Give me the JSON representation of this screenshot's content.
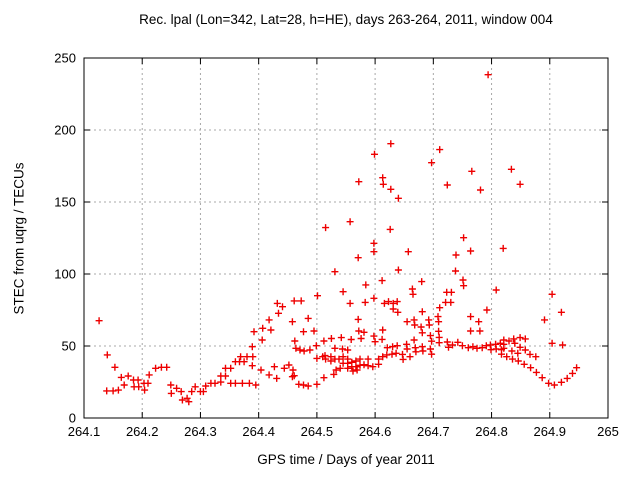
{
  "window": {
    "background": "#ffffff"
  },
  "colors": {
    "marker": "#ee0000",
    "grid": "#a8a8a8",
    "border": "#000000",
    "text": "#000000"
  },
  "chart_data": {
    "type": "scatter",
    "title": "Rec. lpal (Lon=342, Lat=28, h=HE), days 263-264, 2011, window 004",
    "xlabel": "GPS time / Days of year 2011",
    "ylabel": "STEC from uqrg / TECUs",
    "xlim": [
      264.1,
      265.0
    ],
    "ylim": [
      0,
      250
    ],
    "xticks": [
      {
        "v": 264.1,
        "label": "264.1"
      },
      {
        "v": 264.2,
        "label": "264.2"
      },
      {
        "v": 264.3,
        "label": "264.3"
      },
      {
        "v": 264.4,
        "label": "264.4"
      },
      {
        "v": 264.5,
        "label": "264.5"
      },
      {
        "v": 264.6,
        "label": "264.6"
      },
      {
        "v": 264.7,
        "label": "264.7"
      },
      {
        "v": 264.8,
        "label": "264.8"
      },
      {
        "v": 264.9,
        "label": "264.9"
      },
      {
        "v": 265.0,
        "label": "265"
      }
    ],
    "yticks": [
      {
        "v": 0,
        "label": "0"
      },
      {
        "v": 50,
        "label": "50"
      },
      {
        "v": 100,
        "label": "100"
      },
      {
        "v": 150,
        "label": "150"
      },
      {
        "v": 200,
        "label": "200"
      },
      {
        "v": 250,
        "label": "250"
      }
    ],
    "grid": true,
    "legend": "none",
    "marker": "plus",
    "series": [
      {
        "name": "STEC",
        "points": [
          [
            264.126,
            67.6
          ],
          [
            264.14,
            43.8
          ],
          [
            264.153,
            35.2
          ],
          [
            264.164,
            28.2
          ],
          [
            264.139,
            18.8
          ],
          [
            264.15,
            18.8
          ],
          [
            264.159,
            19.4
          ],
          [
            264.169,
            22.9
          ],
          [
            264.176,
            29.2
          ],
          [
            264.185,
            26.4
          ],
          [
            264.186,
            21.7
          ],
          [
            264.193,
            26.4
          ],
          [
            264.194,
            21.7
          ],
          [
            264.203,
            24.1
          ],
          [
            264.204,
            19.4
          ],
          [
            264.212,
            29.9
          ],
          [
            264.21,
            24.1
          ],
          [
            264.223,
            34.5
          ],
          [
            264.233,
            35.2
          ],
          [
            264.242,
            35.2
          ],
          [
            264.249,
            22.9
          ],
          [
            264.25,
            17.1
          ],
          [
            264.259,
            20.6
          ],
          [
            264.267,
            18.3
          ],
          [
            264.269,
            12.5
          ],
          [
            264.277,
            13.7
          ],
          [
            264.28,
            11.3
          ],
          [
            264.285,
            18.3
          ],
          [
            264.291,
            21.7
          ],
          [
            264.3,
            18.3
          ],
          [
            264.305,
            18.3
          ],
          [
            264.309,
            22.2
          ],
          [
            264.318,
            24.1
          ],
          [
            264.325,
            24.1
          ],
          [
            264.335,
            29.2
          ],
          [
            264.335,
            24.9
          ],
          [
            264.343,
            34.5
          ],
          [
            264.343,
            29.2
          ],
          [
            264.352,
            34.5
          ],
          [
            264.352,
            24.1
          ],
          [
            264.36,
            39.1
          ],
          [
            264.36,
            24.1
          ],
          [
            264.369,
            42.6
          ],
          [
            264.367,
            39.1
          ],
          [
            264.375,
            39.1
          ],
          [
            264.372,
            24.1
          ],
          [
            264.38,
            42.6
          ],
          [
            264.384,
            24.1
          ],
          [
            264.389,
            49.5
          ],
          [
            264.39,
            42.6
          ],
          [
            264.389,
            36.3
          ],
          [
            264.392,
            59.9
          ],
          [
            264.395,
            22.9
          ],
          [
            264.404,
            33.3
          ],
          [
            264.406,
            54.2
          ],
          [
            264.407,
            62.3
          ],
          [
            264.418,
            68.1
          ],
          [
            264.421,
            61.1
          ],
          [
            264.418,
            29.9
          ],
          [
            264.427,
            35.6
          ],
          [
            264.431,
            27.5
          ],
          [
            264.432,
            79.6
          ],
          [
            264.434,
            72.7
          ],
          [
            264.441,
            77.3
          ],
          [
            264.444,
            34.5
          ],
          [
            264.452,
            36.8
          ],
          [
            264.458,
            66.9
          ],
          [
            264.459,
            33.3
          ],
          [
            264.458,
            28.7
          ],
          [
            264.627,
            190.5
          ],
          [
            264.599,
            183.1
          ],
          [
            264.613,
            166.9
          ],
          [
            264.614,
            162.3
          ],
          [
            264.572,
            164.1
          ],
          [
            264.627,
            158.8
          ],
          [
            264.64,
            152.6
          ],
          [
            264.557,
            136.3
          ],
          [
            264.515,
            132.2
          ],
          [
            264.626,
            131.0
          ],
          [
            264.598,
            121.3
          ],
          [
            264.598,
            115.5
          ],
          [
            264.571,
            111.3
          ],
          [
            264.531,
            101.6
          ],
          [
            264.64,
            102.8
          ],
          [
            264.612,
            95.4
          ],
          [
            264.584,
            92.4
          ],
          [
            264.545,
            87.7
          ],
          [
            264.598,
            83.1
          ],
          [
            264.501,
            84.9
          ],
          [
            264.473,
            81.3
          ],
          [
            264.557,
            79.6
          ],
          [
            264.583,
            80.3
          ],
          [
            264.616,
            79.6
          ],
          [
            264.623,
            80.8
          ],
          [
            264.631,
            79.6
          ],
          [
            264.638,
            80.8
          ],
          [
            264.631,
            75.7
          ],
          [
            264.639,
            73.4
          ],
          [
            264.485,
            69.2
          ],
          [
            264.571,
            68.5
          ],
          [
            264.461,
            81.3
          ],
          [
            264.462,
            53.5
          ],
          [
            264.477,
            59.9
          ],
          [
            264.495,
            60.4
          ],
          [
            264.572,
            60.4
          ],
          [
            264.581,
            59.5
          ],
          [
            264.613,
            61.1
          ],
          [
            264.512,
            53.5
          ],
          [
            264.525,
            55.2
          ],
          [
            264.542,
            55.8
          ],
          [
            264.559,
            54.5
          ],
          [
            264.576,
            55.2
          ],
          [
            264.598,
            56.9
          ],
          [
            264.6,
            53.0
          ],
          [
            264.612,
            54.6
          ],
          [
            264.531,
            48.4
          ],
          [
            264.544,
            47.9
          ],
          [
            264.553,
            47.2
          ],
          [
            264.488,
            47.2
          ],
          [
            264.621,
            48.8
          ],
          [
            264.63,
            49.5
          ],
          [
            264.638,
            50.2
          ],
          [
            264.464,
            48.4
          ],
          [
            264.471,
            47.2
          ],
          [
            264.478,
            46.5
          ],
          [
            264.499,
            50.2
          ],
          [
            264.5,
            41.4
          ],
          [
            264.514,
            43.3
          ],
          [
            264.51,
            42.6
          ],
          [
            264.515,
            40.9
          ],
          [
            264.524,
            42.6
          ],
          [
            264.524,
            39.6
          ],
          [
            264.531,
            40.9
          ],
          [
            264.538,
            40.9
          ],
          [
            264.545,
            42.6
          ],
          [
            264.553,
            40.9
          ],
          [
            264.545,
            38.0
          ],
          [
            264.553,
            38.0
          ],
          [
            264.56,
            38.7
          ],
          [
            264.567,
            39.6
          ],
          [
            264.56,
            35.6
          ],
          [
            264.567,
            35.6
          ],
          [
            264.574,
            36.6
          ],
          [
            264.581,
            37.0
          ],
          [
            264.588,
            36.3
          ],
          [
            264.574,
            40.9
          ],
          [
            264.588,
            40.9
          ],
          [
            264.596,
            35.6
          ],
          [
            264.54,
            34.5
          ],
          [
            264.553,
            34.5
          ],
          [
            264.562,
            32.6
          ],
          [
            264.569,
            33.3
          ],
          [
            264.606,
            40.9
          ],
          [
            264.613,
            42.6
          ],
          [
            264.62,
            43.8
          ],
          [
            264.629,
            44.3
          ],
          [
            264.636,
            44.9
          ],
          [
            264.606,
            37.3
          ],
          [
            264.512,
            28.0
          ],
          [
            264.529,
            30.3
          ],
          [
            264.533,
            33.3
          ],
          [
            264.469,
            23.4
          ],
          [
            264.477,
            22.9
          ],
          [
            264.485,
            22.2
          ],
          [
            264.5,
            23.4
          ],
          [
            264.461,
            29.4
          ],
          [
            264.794,
            238.4
          ],
          [
            264.711,
            186.4
          ],
          [
            264.697,
            177.3
          ],
          [
            264.766,
            171.3
          ],
          [
            264.724,
            161.8
          ],
          [
            264.781,
            158.3
          ],
          [
            264.752,
            125.2
          ],
          [
            264.739,
            113.2
          ],
          [
            264.764,
            116.0
          ],
          [
            264.657,
            115.5
          ],
          [
            264.82,
            117.8
          ],
          [
            264.738,
            102.1
          ],
          [
            264.751,
            95.8
          ],
          [
            264.752,
            91.9
          ],
          [
            264.68,
            94.7
          ],
          [
            264.723,
            87.3
          ],
          [
            264.731,
            87.3
          ],
          [
            264.808,
            88.9
          ],
          [
            264.664,
            89.6
          ],
          [
            264.665,
            85.9
          ],
          [
            264.721,
            80.3
          ],
          [
            264.73,
            80.3
          ],
          [
            264.711,
            76.6
          ],
          [
            264.681,
            73.8
          ],
          [
            264.655,
            66.9
          ],
          [
            264.667,
            68.1
          ],
          [
            264.668,
            64.6
          ],
          [
            264.679,
            63.2
          ],
          [
            264.681,
            59.2
          ],
          [
            264.692,
            68.1
          ],
          [
            264.693,
            64.6
          ],
          [
            264.708,
            70.4
          ],
          [
            264.709,
            66.9
          ],
          [
            264.764,
            70.4
          ],
          [
            264.778,
            66.9
          ],
          [
            264.78,
            60.4
          ],
          [
            264.792,
            75.0
          ],
          [
            264.764,
            60.4
          ],
          [
            264.695,
            57.2
          ],
          [
            264.697,
            53.3
          ],
          [
            264.709,
            60.2
          ],
          [
            264.71,
            56.0
          ],
          [
            264.71,
            52.3
          ],
          [
            264.724,
            52.8
          ],
          [
            264.726,
            49.1
          ],
          [
            264.667,
            54.2
          ],
          [
            264.654,
            51.2
          ],
          [
            264.655,
            47.9
          ],
          [
            264.669,
            48.8
          ],
          [
            264.681,
            49.5
          ],
          [
            264.67,
            46.0
          ],
          [
            264.682,
            46.5
          ],
          [
            264.695,
            47.9
          ],
          [
            264.697,
            44.3
          ],
          [
            264.647,
            44.2
          ],
          [
            264.648,
            40.7
          ],
          [
            264.66,
            42.6
          ],
          [
            264.733,
            50.7
          ],
          [
            264.742,
            52.6
          ],
          [
            264.75,
            50.2
          ],
          [
            264.76,
            48.8
          ],
          [
            264.768,
            49.5
          ],
          [
            264.775,
            48.4
          ],
          [
            264.784,
            48.8
          ],
          [
            264.791,
            50.2
          ],
          [
            264.798,
            50.7
          ],
          [
            264.799,
            47.4
          ],
          [
            264.807,
            51.2
          ],
          [
            264.808,
            47.9
          ],
          [
            264.815,
            51.9
          ],
          [
            264.817,
            47.4
          ],
          [
            264.817,
            44.3
          ],
          [
            264.834,
            172.7
          ],
          [
            264.849,
            162.3
          ],
          [
            264.904,
            85.9
          ],
          [
            264.92,
            73.4
          ],
          [
            264.891,
            68.1
          ],
          [
            264.904,
            51.9
          ],
          [
            264.922,
            50.7
          ],
          [
            264.821,
            54.2
          ],
          [
            264.821,
            51.2
          ],
          [
            264.821,
            48.4
          ],
          [
            264.83,
            53.5
          ],
          [
            264.838,
            54.9
          ],
          [
            264.84,
            51.9
          ],
          [
            264.849,
            55.8
          ],
          [
            264.858,
            54.9
          ],
          [
            264.849,
            49.1
          ],
          [
            264.858,
            47.2
          ],
          [
            264.835,
            46.5
          ],
          [
            264.845,
            44.9
          ],
          [
            264.826,
            42.6
          ],
          [
            264.836,
            40.9
          ],
          [
            264.846,
            39.6
          ],
          [
            264.856,
            37.3
          ],
          [
            264.866,
            44.2
          ],
          [
            264.876,
            42.6
          ],
          [
            264.867,
            34.9
          ],
          [
            264.877,
            31.7
          ],
          [
            264.887,
            28.0
          ],
          [
            264.898,
            24.1
          ],
          [
            264.908,
            22.9
          ],
          [
            264.92,
            24.8
          ],
          [
            264.93,
            27.5
          ],
          [
            264.939,
            31.0
          ],
          [
            264.946,
            34.9
          ]
        ]
      }
    ]
  }
}
